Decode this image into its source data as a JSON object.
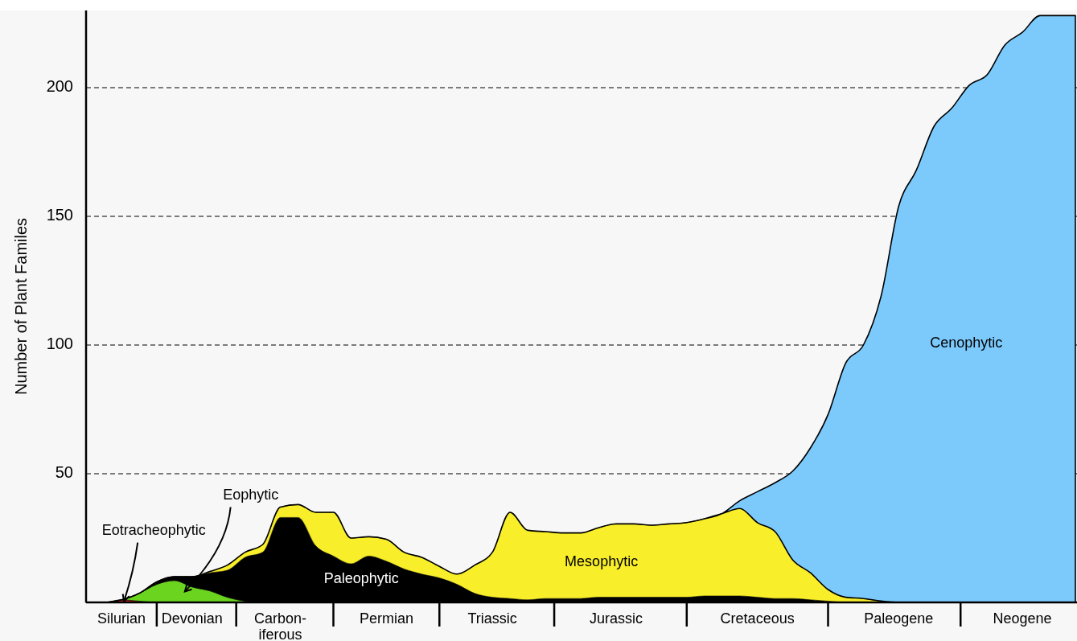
{
  "chart_data": {
    "type": "area",
    "stacked": true,
    "ylabel": "Number of Plant Familes",
    "grid": "y",
    "ylim": [
      0,
      230
    ],
    "yticks": [
      50,
      100,
      150,
      200
    ],
    "categories": [
      null,
      null,
      "Silurian",
      null,
      null,
      null,
      "Devonian",
      null,
      null,
      null,
      null,
      "Carbon-\niferous",
      null,
      null,
      null,
      null,
      null,
      "Permian",
      null,
      null,
      null,
      null,
      null,
      "Triassic",
      null,
      null,
      null,
      null,
      null,
      null,
      "Jurassic",
      null,
      null,
      null,
      null,
      null,
      null,
      null,
      "Cretaceous",
      null,
      null,
      null,
      null,
      null,
      null,
      null,
      "Paleogene",
      null,
      null,
      null,
      null,
      null,
      null,
      "Neogene",
      null,
      null,
      null
    ],
    "series": [
      {
        "name": "Eotracheophytic",
        "color": "#e0201a",
        "values": [
          0,
          0,
          1,
          0.5,
          0,
          0,
          0,
          0,
          0,
          0,
          0,
          0,
          0,
          0,
          0,
          0,
          0,
          0,
          0,
          0,
          0,
          0,
          0,
          0,
          0,
          0,
          0,
          0,
          0,
          0,
          0,
          0,
          0,
          0,
          0,
          0,
          0,
          0,
          0,
          0,
          0,
          0,
          0,
          0,
          0,
          0,
          0,
          0,
          0,
          0,
          0,
          0,
          0,
          0,
          0,
          0,
          0
        ]
      },
      {
        "name": "Eophytic",
        "color": "#6bd41e",
        "values": [
          0,
          0,
          0,
          3,
          7,
          8.5,
          6,
          4.5,
          2,
          0.5,
          0,
          0,
          0,
          0,
          0,
          0,
          0,
          0,
          0,
          0,
          0,
          0,
          0,
          0,
          0,
          0,
          0,
          0,
          0,
          0,
          0,
          0,
          0,
          0,
          0,
          0,
          0,
          0,
          0,
          0,
          0,
          0,
          0,
          0,
          0,
          0,
          0,
          0,
          0,
          0,
          0,
          0,
          0,
          0,
          0,
          0,
          0
        ]
      },
      {
        "name": "Paleophytic",
        "color": "#000000",
        "values": [
          0,
          0,
          0,
          0,
          1,
          1.5,
          4,
          7,
          10.5,
          17,
          19.5,
          33,
          33,
          22,
          18,
          15,
          18,
          16,
          13,
          11,
          9.5,
          7,
          3.5,
          2,
          1.5,
          1,
          1.5,
          1.5,
          1.5,
          2,
          2,
          2,
          2,
          2,
          2,
          2.5,
          2.5,
          2.5,
          2,
          1.5,
          1.5,
          1,
          0.5,
          0,
          0,
          0,
          0,
          0,
          0,
          0,
          0,
          0,
          0,
          0,
          0,
          0,
          0
        ]
      },
      {
        "name": "Mesophytic",
        "color": "#f8ee2a",
        "values": [
          0,
          0,
          0,
          0,
          0,
          0,
          0,
          0.5,
          2,
          2,
          3,
          4,
          5,
          13,
          17,
          10,
          7.5,
          8.5,
          6.5,
          6.5,
          4.5,
          4,
          11,
          17.5,
          33.5,
          27,
          26,
          25.5,
          25.5,
          27,
          28.5,
          28.5,
          28,
          28.5,
          29,
          30,
          32,
          34,
          29,
          26,
          15,
          10.5,
          4.5,
          2,
          1.5,
          0.5,
          0,
          0,
          0,
          0,
          0,
          0,
          0,
          0,
          0,
          0,
          0
        ]
      },
      {
        "name": "Cenophytic",
        "color": "#7ccafc",
        "values": [
          0,
          0,
          0,
          0,
          0,
          0,
          0,
          0,
          0,
          0,
          0,
          0,
          0,
          0,
          0,
          0,
          0,
          0,
          0,
          0,
          0,
          0,
          0,
          0,
          0,
          0,
          0,
          0,
          0,
          0,
          0,
          0,
          0,
          0,
          0,
          0,
          0,
          3,
          12,
          19,
          34.5,
          48.5,
          68,
          91,
          98.5,
          118.5,
          154,
          168,
          185,
          192,
          201,
          205,
          216.5,
          221.5,
          228,
          228,
          228
        ]
      }
    ]
  }
}
